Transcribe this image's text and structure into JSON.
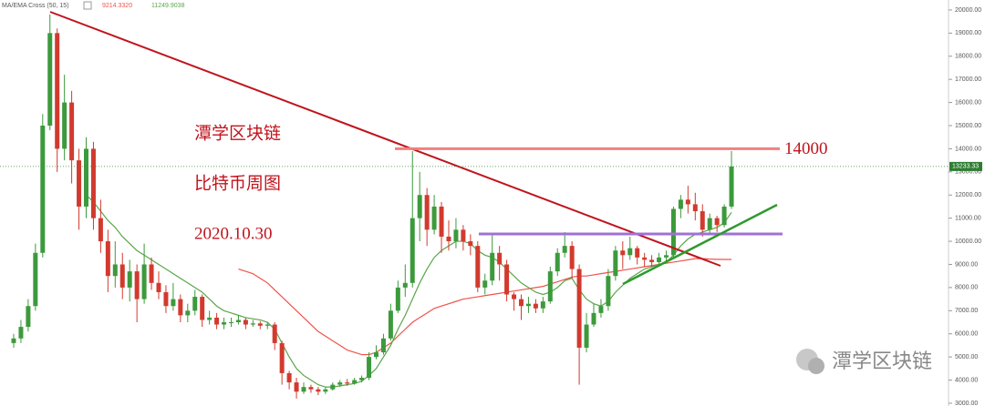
{
  "chart_data": {
    "type": "candlestick",
    "indicator_label": "MA/EMA Cross (50, 15)",
    "up_color": "#3c9a3c",
    "down_color": "#d23a2e",
    "open": [
      5600,
      5800,
      6300,
      7200,
      9500,
      15000,
      19000,
      14000,
      16000,
      13500,
      11500,
      14000,
      11000,
      10000,
      8500,
      9000,
      8000,
      8700,
      7500,
      9000,
      8200,
      7800,
      7200,
      7500,
      6800,
      7000,
      7600,
      6600,
      6700,
      6400,
      6500,
      6500,
      6600,
      6400,
      6450,
      6350,
      6400,
      5600,
      4300,
      3900,
      3500,
      3700,
      3600,
      3500,
      3600,
      3800,
      3900,
      3850,
      4000,
      4100,
      5000,
      5200,
      5800,
      7000,
      8000,
      8200,
      11000,
      12000,
      10500,
      11500,
      10200,
      10000,
      10500,
      10000,
      9800,
      8000,
      8300,
      9500,
      9000,
      7700,
      7500,
      7200,
      7300,
      7100,
      7400,
      8700,
      9500,
      9800,
      8800,
      5400,
      6400,
      6900,
      7200,
      8500,
      9600,
      9400,
      9700,
      9300,
      9200,
      9100,
      9300,
      9400,
      11400,
      11800,
      11600,
      11300,
      10500,
      11000,
      10700,
      11500
    ],
    "high": [
      6000,
      6600,
      7500,
      9900,
      15500,
      19800,
      19200,
      17200,
      16500,
      14000,
      14500,
      14300,
      11800,
      10500,
      10000,
      9500,
      9200,
      9000,
      9900,
      9300,
      8700,
      8100,
      8200,
      7700,
      7300,
      7900,
      7700,
      7000,
      6900,
      6700,
      6700,
      6800,
      6700,
      6600,
      6550,
      6500,
      6500,
      5700,
      4400,
      4100,
      3900,
      3800,
      3700,
      3700,
      3900,
      4000,
      4050,
      4100,
      4200,
      5200,
      5500,
      6000,
      7300,
      8300,
      9000,
      13900,
      13000,
      12300,
      12000,
      11700,
      10900,
      11000,
      10700,
      10300,
      10000,
      8600,
      10300,
      9800,
      9200,
      7800,
      7700,
      7600,
      7500,
      7600,
      8900,
      9700,
      10400,
      10000,
      9000,
      6900,
      7300,
      7500,
      8800,
      9800,
      10000,
      10200,
      9800,
      9500,
      9400,
      9500,
      9600,
      11500,
      12000,
      12400,
      12100,
      11600,
      11200,
      11100,
      11600,
      13900
    ],
    "low": [
      5400,
      5600,
      6100,
      7000,
      9300,
      14800,
      13000,
      13500,
      12500,
      10500,
      11000,
      10500,
      9500,
      7800,
      8000,
      7500,
      7400,
      6500,
      7300,
      7900,
      7500,
      6900,
      7000,
      6500,
      6500,
      6800,
      6300,
      6400,
      6200,
      6200,
      6300,
      6400,
      6200,
      6300,
      6200,
      6200,
      5300,
      3800,
      3600,
      3200,
      3400,
      3450,
      3350,
      3400,
      3550,
      3700,
      3750,
      3800,
      3900,
      4000,
      4900,
      5100,
      5700,
      6900,
      7600,
      8000,
      10000,
      9800,
      10300,
      9500,
      9600,
      9700,
      9600,
      9400,
      7800,
      7700,
      8100,
      8300,
      7400,
      7000,
      6600,
      6900,
      6900,
      6900,
      7300,
      8500,
      9300,
      8400,
      3800,
      5200,
      6300,
      6700,
      7000,
      8300,
      8800,
      9200,
      9000,
      8900,
      8900,
      9000,
      9100,
      9300,
      11000,
      11200,
      10900,
      10200,
      10300,
      10400,
      10600,
      11400
    ],
    "close": [
      5800,
      6300,
      7200,
      9500,
      15000,
      19000,
      14000,
      16000,
      13500,
      11500,
      14000,
      11000,
      10000,
      8500,
      9000,
      8000,
      8700,
      7500,
      9000,
      8200,
      7800,
      7200,
      7500,
      6800,
      7000,
      7600,
      6600,
      6700,
      6400,
      6500,
      6500,
      6600,
      6400,
      6450,
      6350,
      6400,
      5600,
      4300,
      3900,
      3500,
      3700,
      3600,
      3500,
      3600,
      3800,
      3900,
      3850,
      4000,
      4100,
      5000,
      5200,
      5800,
      7000,
      8000,
      8200,
      11000,
      12000,
      10500,
      11500,
      10200,
      10000,
      10500,
      10000,
      9800,
      8000,
      8300,
      9500,
      9000,
      7700,
      7500,
      7200,
      7300,
      7100,
      7400,
      8700,
      9500,
      9800,
      8800,
      5400,
      6400,
      6900,
      7200,
      8500,
      9600,
      9400,
      9700,
      9300,
      9200,
      9100,
      9300,
      9400,
      11400,
      11800,
      11600,
      11300,
      10500,
      11000,
      10700,
      11500,
      13233.33
    ],
    "ma_series": [
      {
        "color": "#f0524a",
        "last": {
          "value": 9214.332,
          "label": "9214.3320"
        },
        "values": [
          null,
          null,
          null,
          null,
          null,
          null,
          null,
          null,
          null,
          null,
          null,
          null,
          null,
          null,
          null,
          null,
          null,
          null,
          null,
          null,
          null,
          null,
          null,
          null,
          null,
          null,
          null,
          null,
          null,
          null,
          null,
          8800,
          8700,
          8600,
          8400,
          8200,
          7900,
          7600,
          7300,
          7000,
          6700,
          6400,
          6100,
          5900,
          5700,
          5500,
          5300,
          5200,
          5100,
          5100,
          5200,
          5400,
          5600,
          5900,
          6200,
          6500,
          6700,
          6900,
          7100,
          7200,
          7300,
          7400,
          7500,
          7550,
          7600,
          7650,
          7700,
          7750,
          7800,
          7850,
          7900,
          7950,
          8000,
          8050,
          8150,
          8250,
          8350,
          8450,
          8500,
          8500,
          8550,
          8600,
          8650,
          8700,
          8750,
          8800,
          8850,
          8900,
          8950,
          9000,
          9050,
          9100,
          9150,
          9200,
          9250,
          9250,
          9230,
          9220,
          9215,
          9214.332
        ]
      },
      {
        "color": "#5aa64a",
        "last": {
          "value": 11249.9038,
          "label": "11249.9038"
        },
        "values": [
          null,
          null,
          null,
          null,
          null,
          null,
          null,
          null,
          null,
          null,
          12000,
          11700,
          11300,
          10900,
          10600,
          10200,
          9900,
          9600,
          9400,
          9200,
          9000,
          8800,
          8600,
          8400,
          8200,
          8000,
          7800,
          7500,
          7200,
          7000,
          6900,
          6800,
          6700,
          6650,
          6600,
          6500,
          6200,
          5600,
          5000,
          4500,
          4200,
          4000,
          3800,
          3700,
          3700,
          3750,
          3800,
          3850,
          3950,
          4200,
          4500,
          5000,
          5500,
          6200,
          6800,
          7500,
          8200,
          8800,
          9300,
          9600,
          9800,
          10000,
          10000,
          9900,
          9600,
          9400,
          9300,
          9100,
          8800,
          8500,
          8200,
          8000,
          7800,
          7700,
          7800,
          8000,
          8300,
          8400,
          7900,
          7500,
          7300,
          7200,
          7400,
          7800,
          8100,
          8400,
          8600,
          8800,
          8900,
          9000,
          9100,
          9400,
          9800,
          10100,
          10300,
          10400,
          10500,
          10600,
          10800,
          11249.9038
        ]
      }
    ],
    "ylim": [
      2880,
      20430
    ],
    "yticks": [
      {
        "value": 3000,
        "label": "3000.00"
      },
      {
        "value": 4000,
        "label": "4000.00"
      },
      {
        "value": 5000,
        "label": "5000.00"
      },
      {
        "value": 6000,
        "label": "6000.00"
      },
      {
        "value": 7000,
        "label": "7000.00"
      },
      {
        "value": 8000,
        "label": "8000.00"
      },
      {
        "value": 9000,
        "label": "9000.00"
      },
      {
        "value": 10000,
        "label": "10000.00"
      },
      {
        "value": 11000,
        "label": "11000.00"
      },
      {
        "value": 12000,
        "label": "12000.00"
      },
      {
        "value": 13000,
        "label": "13000.00"
      },
      {
        "value": 14000,
        "label": "14000.00"
      },
      {
        "value": 15000,
        "label": "15000.00"
      },
      {
        "value": 16000,
        "label": "16000.00"
      },
      {
        "value": 17000,
        "label": "17000.00"
      },
      {
        "value": 18000,
        "label": "18000.00"
      },
      {
        "value": 19000,
        "label": "19000.00"
      },
      {
        "value": 20000,
        "label": "20000.00"
      }
    ],
    "last_price": 13233.33,
    "level": 14000,
    "annotations": [
      "潭学区块链",
      "比特币周图",
      "2020.10.30"
    ],
    "watermark": "潭学区块链"
  }
}
